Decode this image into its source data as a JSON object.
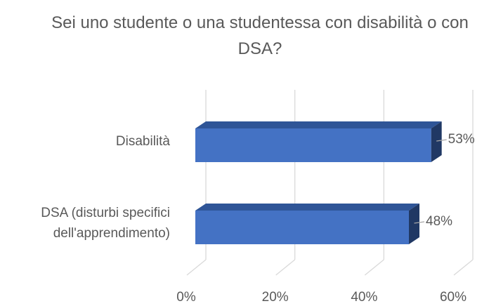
{
  "chart_data": {
    "type": "bar3d_horizontal",
    "title": "Sei uno studente o una studentessa con disabilità o con DSA?",
    "categories": [
      "Disabilità",
      "DSA (disturbi specifici dell'apprendimento)"
    ],
    "values": [
      53,
      48
    ],
    "value_labels": [
      "53%",
      "48%"
    ],
    "color": "#4472c4",
    "xlim": [
      0,
      60
    ],
    "xticks": [
      {
        "value": 0,
        "label": "0%"
      },
      {
        "value": 20,
        "label": "20%"
      },
      {
        "value": 40,
        "label": "40%"
      },
      {
        "value": 60,
        "label": "60%"
      }
    ],
    "grid": true
  }
}
